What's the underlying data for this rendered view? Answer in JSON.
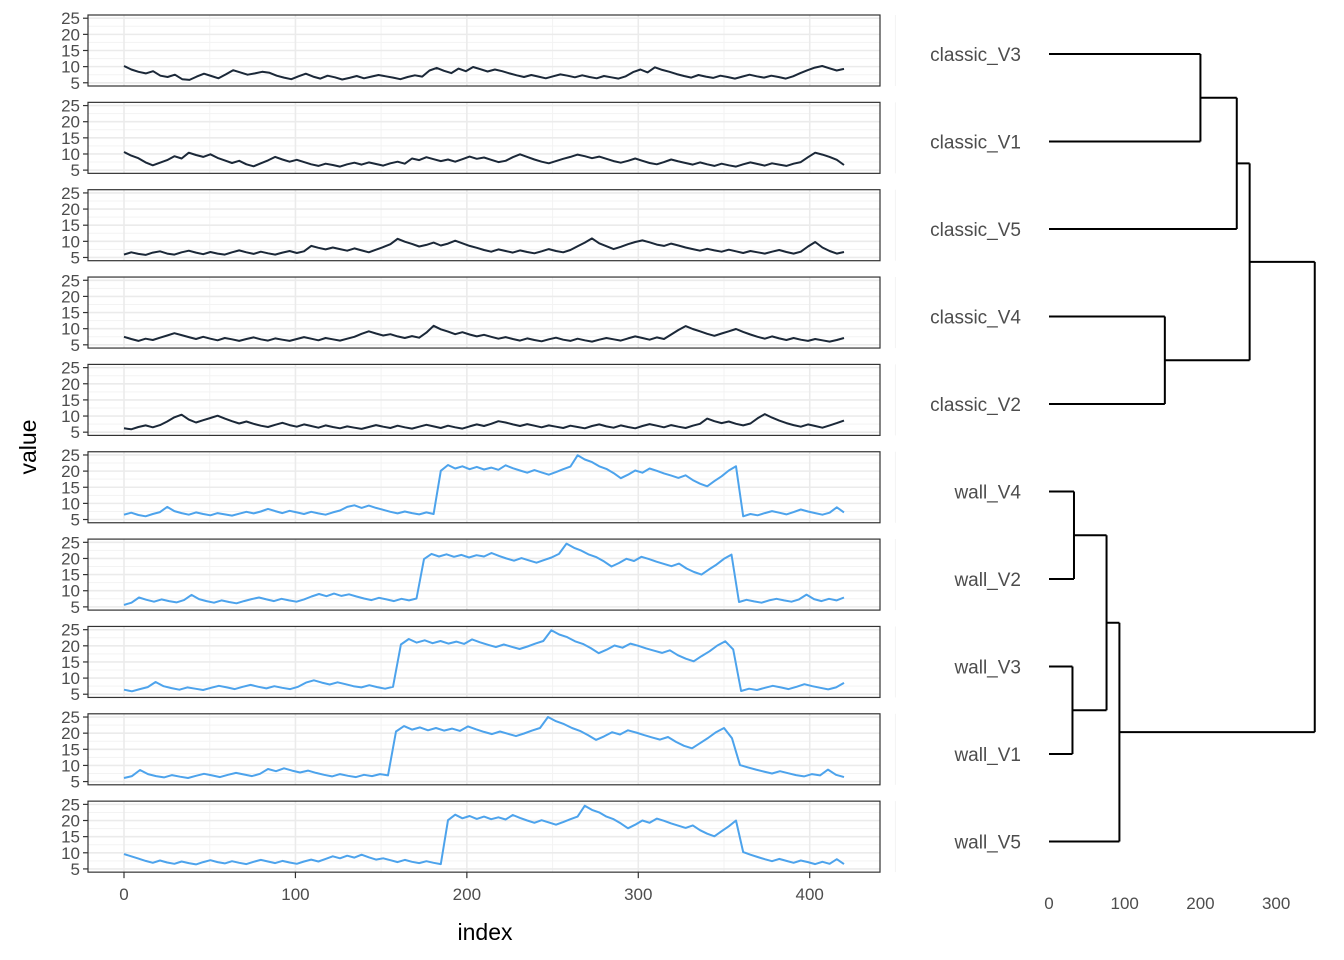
{
  "chart_data": [
    {
      "type": "line",
      "xlabel": "index",
      "ylabel": "value",
      "xlim": [
        0,
        420
      ],
      "ylim": [
        5,
        25
      ],
      "x_ticks": [
        0,
        100,
        200,
        300,
        400
      ],
      "y_ticks": [
        5,
        10,
        15,
        20,
        25
      ],
      "grid": true,
      "colors": {
        "classic": "#1b2838",
        "wall": "#4da3ec",
        "grid_major": "#ebebeb",
        "grid_minor": "#f3f3f3",
        "panel_border": "#333333"
      },
      "series": [
        {
          "group": "classic",
          "values": [
            10.2,
            9.1,
            8.4,
            7.9,
            8.6,
            7.2,
            6.8,
            7.5,
            6.1,
            5.9,
            6.9,
            7.8,
            7.1,
            6.4,
            7.6,
            8.9,
            8.2,
            7.5,
            7.9,
            8.4,
            8.1,
            7.2,
            6.6,
            6.1,
            7.0,
            7.8,
            6.9,
            6.3,
            7.2,
            6.7,
            6.0,
            6.5,
            7.1,
            6.4,
            6.9,
            7.4,
            7.0,
            6.6,
            6.1,
            6.8,
            7.3,
            6.9,
            8.8,
            9.6,
            8.7,
            8.0,
            9.4,
            8.6,
            9.9,
            9.2,
            8.5,
            9.1,
            8.6,
            7.9,
            7.3,
            6.8,
            7.4,
            6.9,
            6.4,
            7.0,
            7.6,
            7.2,
            6.7,
            7.3,
            6.8,
            6.4,
            7.1,
            6.7,
            6.3,
            7.0,
            8.3,
            9.1,
            8.2,
            9.8,
            9.0,
            8.4,
            7.7,
            7.1,
            6.6,
            7.4,
            6.9,
            6.5,
            7.2,
            6.8,
            6.3,
            6.9,
            7.5,
            7.0,
            6.6,
            7.2,
            6.8,
            6.3,
            7.0,
            8.0,
            8.9,
            9.7,
            10.2,
            9.5,
            8.8,
            9.3
          ]
        },
        {
          "group": "classic",
          "values": [
            10.6,
            9.5,
            8.7,
            7.4,
            6.5,
            7.3,
            8.1,
            9.3,
            8.6,
            10.4,
            9.7,
            9.1,
            9.9,
            8.8,
            8.0,
            7.2,
            7.9,
            6.8,
            6.2,
            7.1,
            8.0,
            9.1,
            8.3,
            7.6,
            8.2,
            7.5,
            6.8,
            6.3,
            7.0,
            6.6,
            6.1,
            6.8,
            7.3,
            6.7,
            7.4,
            6.9,
            6.4,
            7.1,
            7.6,
            7.0,
            8.6,
            8.1,
            9.0,
            8.4,
            7.8,
            8.3,
            7.6,
            8.4,
            9.2,
            8.5,
            8.9,
            8.2,
            7.5,
            7.9,
            9.0,
            9.9,
            9.1,
            8.3,
            7.6,
            7.1,
            7.8,
            8.5,
            9.1,
            9.8,
            9.3,
            8.7,
            9.2,
            8.5,
            7.8,
            7.3,
            7.9,
            8.6,
            7.9,
            7.2,
            6.8,
            7.5,
            8.3,
            7.7,
            7.2,
            6.7,
            7.4,
            6.8,
            6.3,
            7.0,
            6.5,
            6.1,
            6.8,
            7.4,
            6.9,
            6.4,
            7.1,
            6.7,
            6.3,
            7.0,
            7.5,
            9.0,
            10.4,
            9.8,
            9.1,
            8.2,
            6.6
          ]
        },
        {
          "group": "classic",
          "values": [
            5.9,
            6.6,
            6.1,
            5.8,
            6.5,
            6.9,
            6.2,
            5.9,
            6.6,
            7.1,
            6.5,
            6.0,
            6.7,
            6.2,
            5.9,
            6.6,
            7.2,
            6.6,
            6.1,
            6.8,
            6.3,
            5.9,
            6.5,
            7.0,
            6.4,
            6.9,
            8.6,
            8.0,
            7.5,
            8.1,
            7.6,
            7.1,
            7.8,
            7.2,
            6.6,
            7.4,
            8.2,
            9.1,
            10.8,
            9.9,
            9.2,
            8.4,
            8.9,
            9.6,
            8.7,
            9.3,
            10.2,
            9.4,
            8.6,
            8.0,
            7.3,
            6.8,
            7.5,
            7.0,
            6.5,
            7.2,
            6.7,
            6.3,
            6.9,
            7.6,
            7.0,
            6.6,
            7.3,
            8.5,
            9.6,
            10.9,
            9.4,
            8.5,
            7.6,
            8.3,
            9.1,
            9.8,
            10.3,
            9.7,
            9.0,
            8.6,
            9.3,
            8.7,
            8.1,
            7.6,
            7.1,
            7.7,
            7.2,
            6.8,
            7.4,
            6.9,
            6.4,
            7.0,
            6.6,
            6.2,
            6.8,
            7.3,
            6.7,
            6.2,
            6.8,
            8.4,
            9.8,
            8.1,
            7.0,
            6.2,
            6.7
          ]
        },
        {
          "group": "classic",
          "values": [
            7.5,
            6.8,
            6.2,
            6.9,
            6.5,
            7.2,
            7.9,
            8.6,
            8.0,
            7.4,
            6.8,
            7.5,
            6.9,
            6.4,
            7.1,
            6.7,
            6.2,
            6.8,
            7.3,
            6.7,
            6.3,
            7.0,
            6.6,
            6.2,
            6.8,
            7.4,
            6.9,
            6.4,
            7.1,
            6.7,
            6.3,
            6.9,
            7.5,
            8.4,
            9.2,
            8.5,
            7.9,
            8.3,
            7.6,
            7.1,
            7.7,
            7.2,
            8.8,
            10.9,
            9.8,
            9.1,
            8.3,
            8.9,
            8.2,
            7.6,
            8.1,
            7.5,
            6.9,
            7.4,
            6.8,
            6.3,
            7.0,
            6.5,
            6.1,
            6.7,
            7.2,
            6.6,
            6.2,
            6.9,
            6.4,
            6.0,
            6.6,
            7.1,
            6.7,
            6.3,
            7.0,
            7.6,
            7.1,
            6.6,
            7.3,
            6.8,
            8.2,
            9.6,
            10.8,
            9.9,
            9.2,
            8.4,
            7.8,
            8.5,
            9.2,
            9.9,
            9.0,
            8.2,
            7.5,
            6.9,
            7.6,
            7.0,
            6.5,
            7.1,
            6.6,
            6.2,
            6.8,
            6.4,
            6.0,
            6.5,
            7.1
          ]
        },
        {
          "group": "classic",
          "values": [
            6.2,
            5.9,
            6.6,
            7.1,
            6.5,
            7.2,
            8.3,
            9.6,
            10.4,
            8.9,
            8.0,
            8.7,
            9.4,
            10.1,
            9.2,
            8.4,
            7.7,
            8.3,
            7.6,
            7.0,
            6.6,
            7.3,
            7.9,
            7.2,
            6.7,
            7.4,
            6.9,
            6.4,
            7.1,
            6.6,
            6.2,
            6.8,
            6.4,
            6.0,
            6.6,
            7.2,
            6.7,
            6.3,
            7.0,
            6.5,
            6.1,
            6.7,
            7.3,
            6.8,
            6.3,
            7.0,
            6.5,
            6.1,
            6.8,
            7.4,
            6.9,
            7.6,
            8.4,
            8.0,
            7.4,
            6.9,
            7.5,
            7.0,
            6.5,
            7.1,
            6.7,
            6.3,
            7.0,
            6.6,
            6.2,
            6.9,
            7.4,
            6.8,
            6.4,
            7.1,
            6.6,
            6.2,
            6.9,
            7.5,
            7.0,
            6.5,
            7.2,
            6.7,
            6.3,
            7.0,
            7.6,
            9.2,
            8.4,
            7.8,
            8.3,
            7.6,
            7.1,
            7.7,
            9.3,
            10.6,
            9.5,
            8.6,
            7.8,
            7.2,
            6.7,
            7.4,
            6.9,
            6.4,
            7.1,
            7.8,
            8.6
          ]
        },
        {
          "group": "wall",
          "values": [
            6.5,
            7.1,
            6.4,
            6.0,
            6.7,
            7.3,
            8.9,
            7.6,
            7.0,
            6.5,
            7.2,
            6.7,
            6.3,
            7.0,
            6.6,
            6.2,
            6.8,
            7.4,
            6.9,
            7.5,
            8.3,
            7.6,
            7.0,
            7.7,
            7.2,
            6.7,
            7.4,
            6.9,
            6.5,
            7.2,
            7.8,
            8.9,
            9.4,
            8.6,
            9.3,
            8.6,
            8.0,
            7.4,
            6.9,
            7.5,
            7.0,
            6.6,
            7.2,
            6.7,
            20.1,
            21.9,
            20.8,
            21.5,
            20.6,
            21.3,
            20.5,
            21.1,
            20.4,
            21.8,
            20.9,
            20.2,
            19.5,
            20.3,
            19.6,
            18.9,
            19.7,
            20.6,
            21.4,
            24.9,
            23.6,
            22.8,
            21.5,
            20.7,
            19.4,
            17.8,
            18.9,
            20.2,
            19.5,
            20.8,
            20.1,
            19.3,
            18.6,
            17.9,
            18.7,
            17.2,
            16.1,
            15.3,
            16.9,
            18.4,
            20.2,
            21.5,
            6.0,
            6.7,
            6.3,
            7.0,
            7.6,
            7.1,
            6.6,
            7.3,
            8.1,
            7.5,
            7.0,
            6.5,
            7.1,
            8.8,
            7.2
          ]
        },
        {
          "group": "wall",
          "values": [
            5.6,
            6.3,
            7.9,
            7.2,
            6.6,
            7.3,
            6.8,
            6.4,
            7.1,
            8.7,
            7.4,
            6.8,
            6.3,
            7.0,
            6.5,
            6.1,
            6.8,
            7.4,
            7.9,
            7.3,
            6.8,
            7.5,
            7.0,
            6.6,
            7.3,
            8.2,
            9.0,
            8.3,
            9.1,
            8.4,
            8.9,
            8.2,
            7.6,
            7.1,
            7.8,
            7.3,
            6.8,
            7.5,
            7.0,
            7.6,
            19.8,
            21.4,
            20.6,
            21.3,
            20.5,
            21.1,
            20.3,
            21.0,
            20.6,
            21.7,
            20.8,
            20.0,
            19.3,
            20.1,
            19.4,
            18.7,
            19.5,
            20.3,
            21.4,
            24.6,
            23.3,
            22.4,
            21.2,
            20.4,
            19.1,
            17.5,
            18.6,
            19.9,
            19.2,
            20.5,
            19.8,
            19.0,
            18.3,
            17.6,
            18.4,
            16.9,
            15.8,
            15.0,
            16.6,
            18.1,
            19.9,
            21.2,
            6.5,
            7.2,
            6.7,
            6.3,
            7.0,
            7.5,
            7.0,
            6.6,
            7.3,
            8.8,
            7.4,
            6.8,
            7.5,
            7.0,
            7.9
          ]
        },
        {
          "group": "wall",
          "values": [
            6.4,
            5.9,
            6.6,
            7.2,
            8.8,
            7.5,
            6.9,
            6.4,
            7.1,
            6.7,
            6.3,
            7.0,
            7.6,
            7.1,
            6.6,
            7.3,
            7.9,
            7.3,
            6.8,
            7.5,
            7.0,
            6.6,
            7.3,
            8.6,
            9.3,
            8.6,
            8.0,
            8.7,
            8.1,
            7.5,
            7.1,
            7.8,
            7.2,
            6.7,
            7.3,
            20.4,
            22.1,
            21.0,
            21.7,
            20.8,
            21.5,
            20.7,
            21.3,
            20.6,
            22.0,
            21.1,
            20.3,
            19.6,
            20.4,
            19.7,
            19.0,
            19.8,
            20.7,
            21.5,
            24.8,
            23.5,
            22.7,
            21.4,
            20.6,
            19.3,
            17.7,
            18.8,
            20.1,
            19.4,
            20.7,
            20.0,
            19.2,
            18.5,
            17.8,
            18.6,
            17.1,
            16.0,
            15.2,
            16.8,
            18.3,
            20.1,
            21.4,
            18.9,
            6.0,
            6.7,
            6.3,
            7.0,
            7.6,
            7.1,
            6.6,
            7.3,
            8.1,
            7.5,
            7.0,
            6.5,
            7.1,
            8.5
          ]
        },
        {
          "group": "wall",
          "values": [
            6.1,
            6.7,
            8.6,
            7.3,
            6.7,
            6.3,
            7.0,
            6.5,
            6.1,
            6.8,
            7.4,
            6.9,
            6.4,
            7.1,
            7.7,
            7.2,
            6.7,
            7.4,
            8.9,
            8.2,
            9.1,
            8.4,
            7.8,
            8.4,
            7.7,
            7.1,
            6.6,
            7.3,
            6.8,
            6.4,
            7.1,
            6.7,
            7.3,
            6.9,
            20.5,
            22.2,
            21.1,
            21.8,
            20.9,
            21.6,
            20.8,
            21.4,
            20.7,
            22.1,
            21.2,
            20.4,
            19.7,
            20.5,
            19.8,
            19.1,
            19.9,
            20.8,
            21.6,
            25.0,
            23.7,
            22.8,
            21.6,
            20.7,
            19.4,
            17.9,
            19.0,
            20.3,
            19.6,
            20.9,
            20.2,
            19.4,
            18.7,
            18.0,
            18.8,
            17.3,
            16.1,
            15.3,
            16.9,
            18.5,
            20.3,
            21.6,
            18.4,
            10.1,
            9.4,
            8.7,
            8.1,
            7.5,
            8.2,
            7.6,
            7.0,
            6.6,
            7.3,
            6.9,
            8.7,
            7.1,
            6.4
          ]
        },
        {
          "group": "wall",
          "values": [
            9.6,
            8.9,
            8.2,
            7.5,
            6.9,
            7.6,
            7.0,
            6.6,
            7.3,
            6.8,
            6.4,
            7.1,
            7.7,
            7.1,
            6.7,
            7.4,
            6.9,
            6.5,
            7.2,
            7.8,
            7.3,
            6.8,
            7.5,
            7.0,
            6.6,
            7.3,
            7.9,
            7.3,
            8.1,
            8.9,
            8.3,
            9.1,
            8.5,
            9.4,
            8.6,
            7.9,
            8.3,
            7.7,
            7.1,
            7.8,
            7.2,
            6.8,
            7.4,
            6.9,
            6.5,
            20.1,
            21.8,
            20.7,
            21.4,
            20.5,
            21.2,
            20.4,
            21.0,
            20.3,
            21.7,
            20.8,
            20.0,
            19.3,
            20.1,
            19.4,
            18.7,
            19.5,
            20.4,
            21.2,
            24.6,
            23.3,
            22.5,
            21.2,
            20.4,
            19.1,
            17.6,
            18.7,
            20.0,
            19.3,
            20.6,
            19.9,
            19.1,
            18.4,
            17.7,
            18.5,
            17.0,
            15.9,
            15.1,
            16.7,
            18.2,
            20.0,
            10.2,
            9.4,
            8.7,
            8.0,
            7.4,
            8.1,
            7.5,
            6.9,
            7.6,
            7.1,
            6.5,
            7.2,
            6.6,
            8.0,
            6.5
          ]
        }
      ]
    },
    {
      "type": "dendrogram",
      "leaves": [
        "classic_V3",
        "classic_V1",
        "classic_V5",
        "classic_V4",
        "classic_V2",
        "wall_V4",
        "wall_V2",
        "wall_V3",
        "wall_V1",
        "wall_V5"
      ],
      "merges": [
        {
          "a": "classic_V3",
          "b": "classic_V1",
          "height": 200
        },
        {
          "a": "m0",
          "b": "classic_V5",
          "height": 248
        },
        {
          "a": "classic_V4",
          "b": "classic_V2",
          "height": 153
        },
        {
          "a": "m1",
          "b": "m2",
          "height": 265
        },
        {
          "a": "wall_V4",
          "b": "wall_V2",
          "height": 33
        },
        {
          "a": "wall_V3",
          "b": "wall_V1",
          "height": 31
        },
        {
          "a": "m4",
          "b": "m5",
          "height": 76
        },
        {
          "a": "m6",
          "b": "wall_V5",
          "height": 93
        },
        {
          "a": "m3",
          "b": "m7",
          "height": 351
        }
      ],
      "xlim": [
        0,
        350
      ],
      "x_ticks": [
        0,
        100,
        200,
        300
      ]
    }
  ]
}
